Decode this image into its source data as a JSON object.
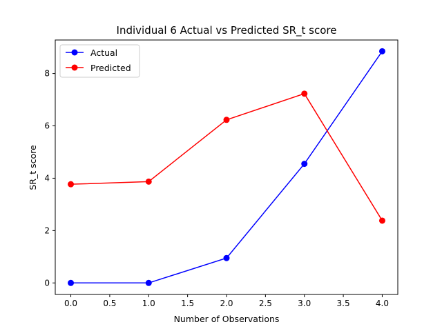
{
  "chart_data": {
    "type": "line",
    "title": "Individual 6 Actual vs Predicted SR_t score",
    "xlabel": "Number of Observations",
    "ylabel": "SR_t score",
    "x": [
      0,
      1,
      2,
      3,
      4
    ],
    "xlim": [
      -0.2,
      4.2
    ],
    "ylim": [
      -0.44,
      9.28
    ],
    "xticks": [
      0.0,
      0.5,
      1.0,
      1.5,
      2.0,
      2.5,
      3.0,
      3.5,
      4.0
    ],
    "xtick_labels": [
      "0.0",
      "0.5",
      "1.0",
      "1.5",
      "2.0",
      "2.5",
      "3.0",
      "3.5",
      "4.0"
    ],
    "yticks": [
      0,
      2,
      4,
      6,
      8
    ],
    "ytick_labels": [
      "0",
      "2",
      "4",
      "6",
      "8"
    ],
    "grid": false,
    "legend_position": "upper-left",
    "series": [
      {
        "name": "Actual",
        "color": "#0000ff",
        "marker": "circle",
        "values": [
          0.0,
          0.0,
          0.95,
          4.55,
          8.85
        ]
      },
      {
        "name": "Predicted",
        "color": "#ff0000",
        "marker": "circle",
        "values": [
          3.77,
          3.87,
          6.23,
          7.23,
          2.38
        ]
      }
    ]
  }
}
